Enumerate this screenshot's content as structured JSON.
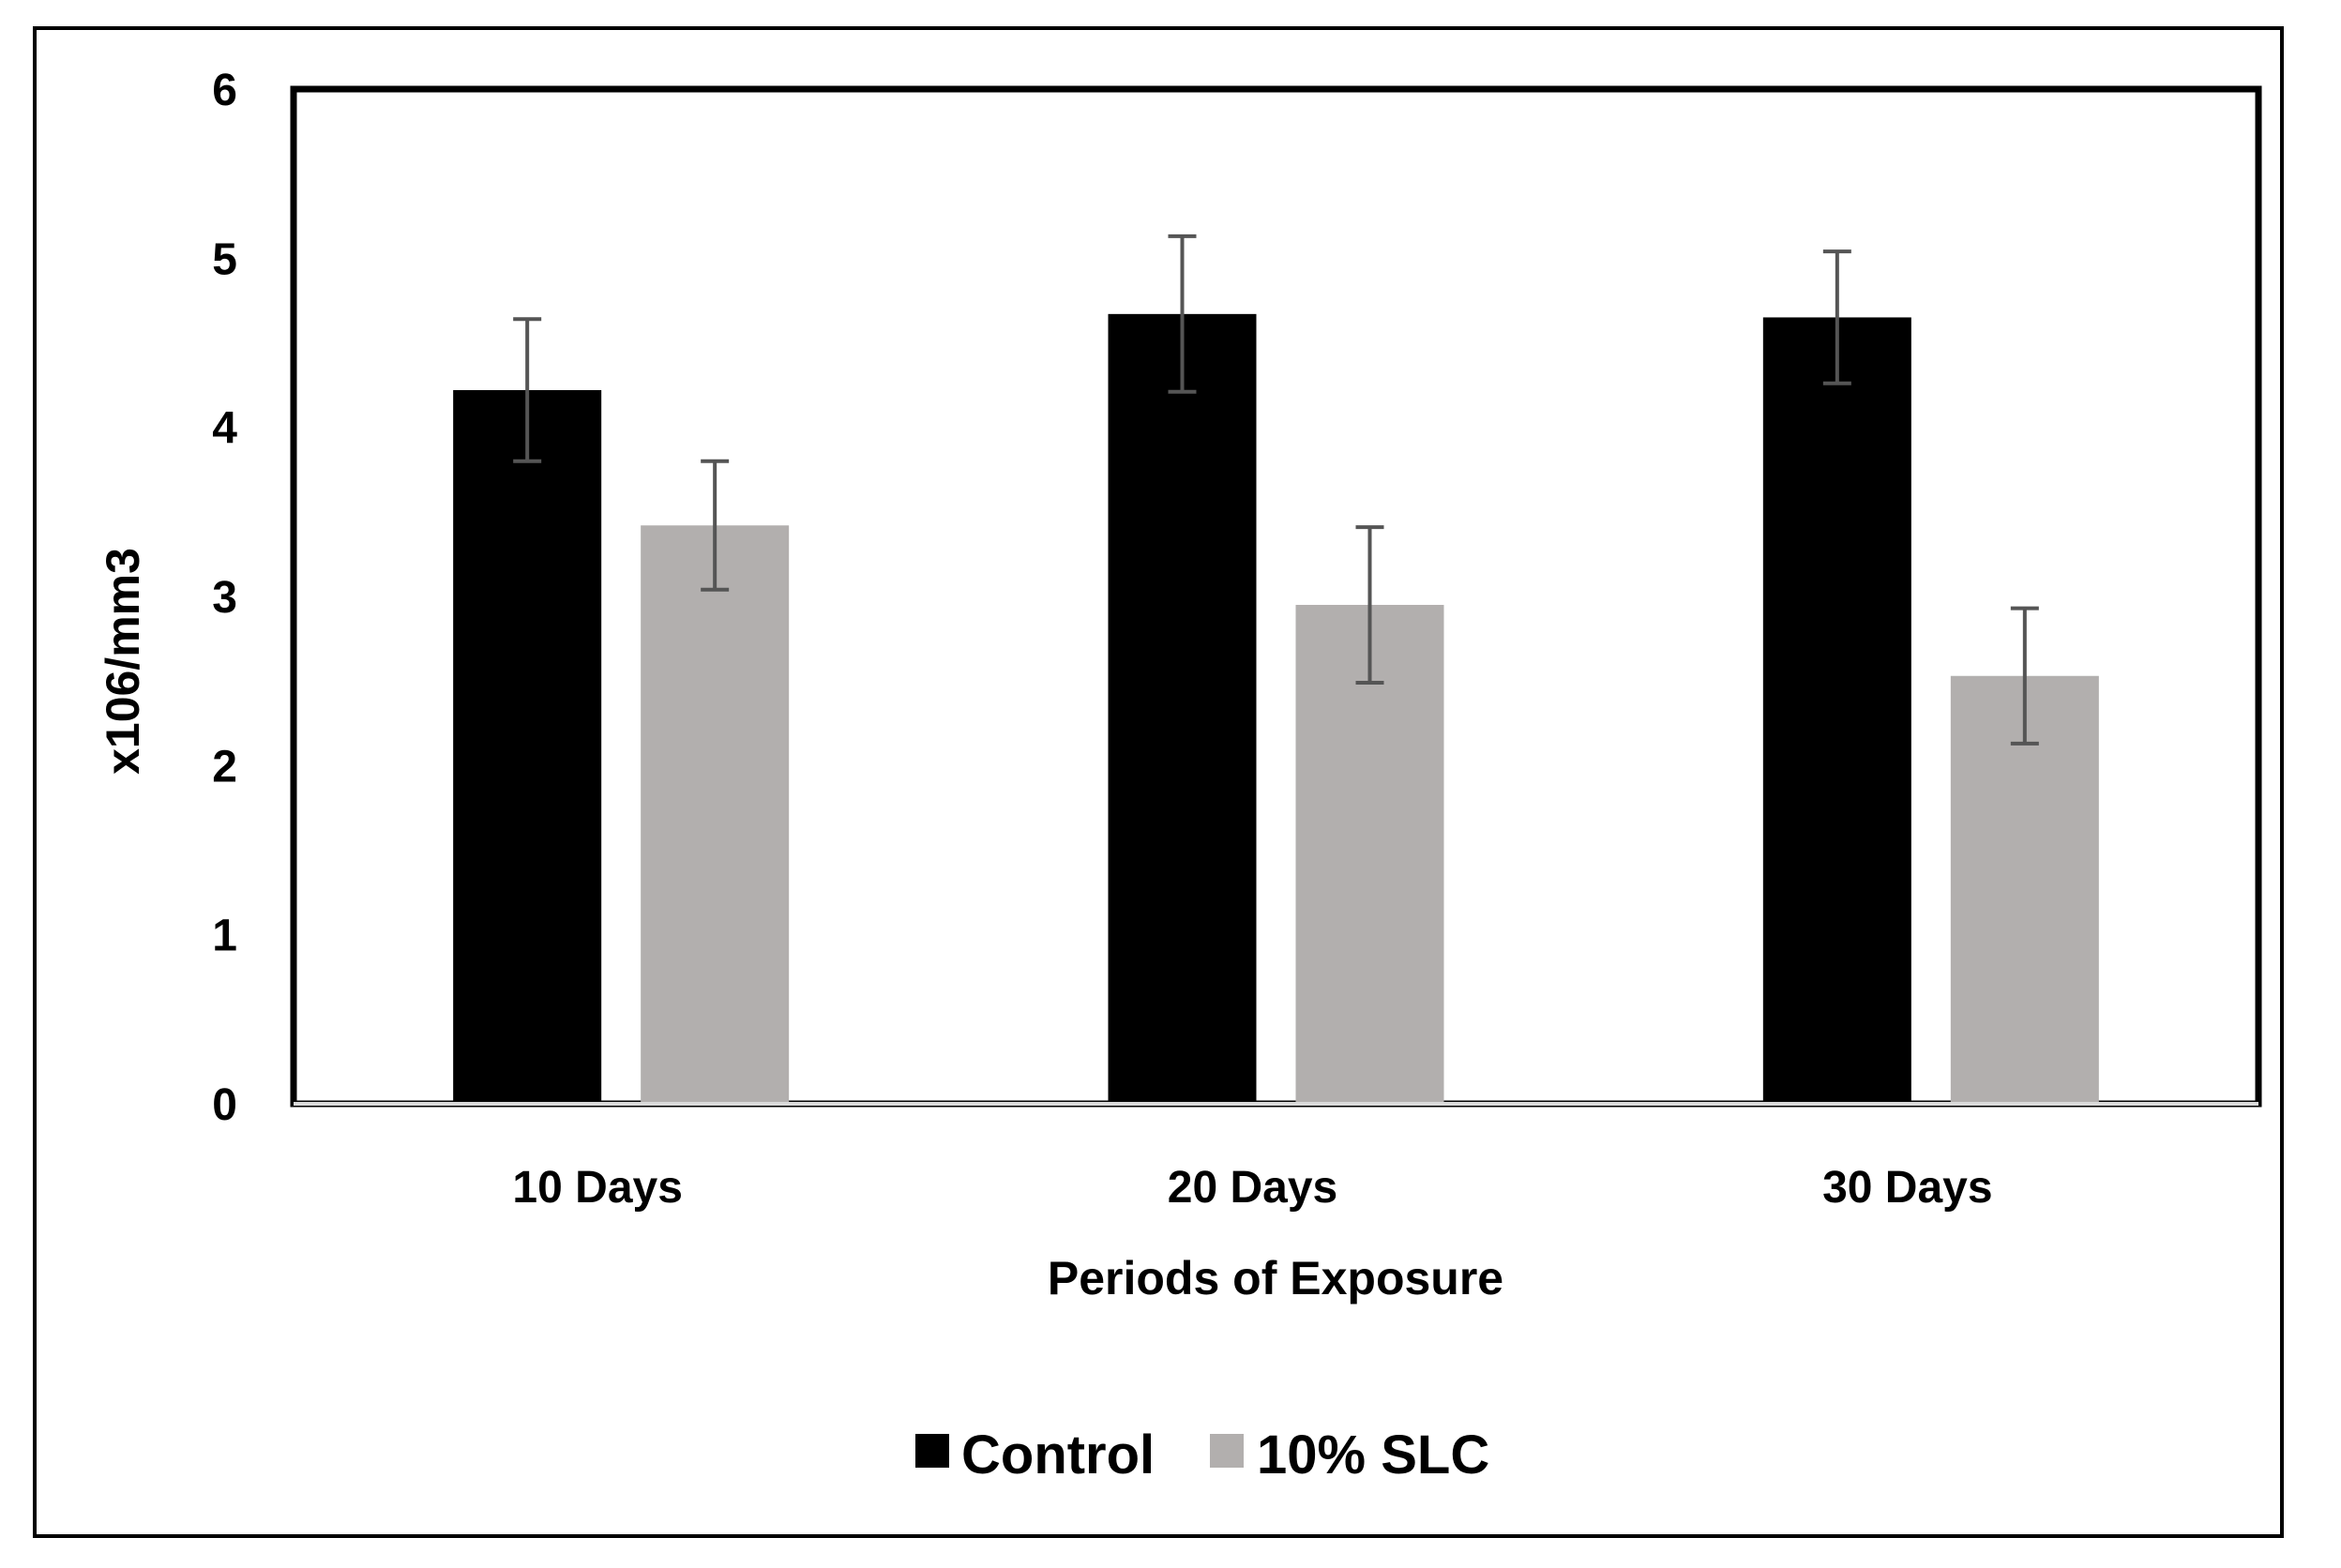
{
  "chart_data": {
    "type": "bar",
    "title": "",
    "xlabel": "Periods of Exposure",
    "ylabel": "x106/mm3",
    "ylim": [
      0,
      6
    ],
    "yticks": [
      "0",
      "1",
      "2",
      "3",
      "4",
      "5",
      "6"
    ],
    "categories": [
      "10 Days",
      "20 Days",
      "30 Days"
    ],
    "series": [
      {
        "name": "Control",
        "color": "#000000",
        "values": [
          4.22,
          4.67,
          4.65
        ],
        "errors": [
          0.42,
          0.46,
          0.39
        ]
      },
      {
        "name": "10% SLC",
        "color": "#b2afae",
        "values": [
          3.42,
          2.95,
          2.53
        ],
        "errors": [
          0.38,
          0.46,
          0.4
        ]
      }
    ],
    "legend": {
      "position": "bottom-center"
    },
    "grid": false
  }
}
